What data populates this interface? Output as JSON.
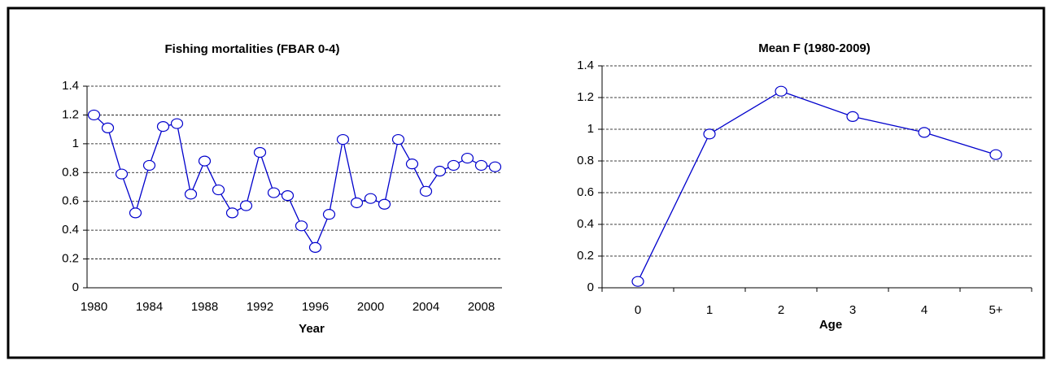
{
  "chart_data": [
    {
      "type": "line",
      "title": "Fishing mortalities  (FBAR 0-4)",
      "x_label": "Year",
      "x": [
        1980,
        1981,
        1982,
        1983,
        1984,
        1985,
        1986,
        1987,
        1988,
        1989,
        1990,
        1991,
        1992,
        1993,
        1994,
        1995,
        1996,
        1997,
        1998,
        1999,
        2000,
        2001,
        2002,
        2003,
        2004,
        2005,
        2006,
        2007,
        2008,
        2009
      ],
      "series": [
        {
          "name": "FBAR 0-4",
          "color": "#0000cc",
          "values": [
            1.2,
            1.11,
            0.79,
            0.52,
            0.85,
            1.12,
            1.14,
            0.65,
            0.88,
            0.68,
            0.52,
            0.57,
            0.94,
            0.66,
            0.64,
            0.43,
            0.28,
            0.51,
            1.03,
            0.59,
            0.62,
            0.58,
            1.03,
            0.86,
            0.67,
            0.81,
            0.85,
            0.9,
            0.85,
            0.84
          ]
        }
      ],
      "xlim": [
        1979.5,
        2009.5
      ],
      "xticks": [
        1980,
        1984,
        1988,
        1992,
        1996,
        2000,
        2004,
        2008
      ],
      "ylim": [
        0,
        1.4
      ],
      "yticks": [
        0,
        0.2,
        0.4,
        0.6,
        0.8,
        1,
        1.2,
        1.4
      ],
      "grid": true
    },
    {
      "type": "line",
      "title": "Mean F (1980-2009)",
      "x_label": "Age",
      "categories": [
        "0",
        "1",
        "2",
        "3",
        "4",
        "5+"
      ],
      "series": [
        {
          "name": "Mean F",
          "color": "#0000cc",
          "values": [
            0.04,
            0.97,
            1.24,
            1.08,
            0.98,
            0.84
          ]
        }
      ],
      "ylim": [
        0,
        1.4
      ],
      "yticks": [
        0,
        0.2,
        0.4,
        0.6,
        0.8,
        1,
        1.2,
        1.4
      ],
      "grid": true
    }
  ]
}
